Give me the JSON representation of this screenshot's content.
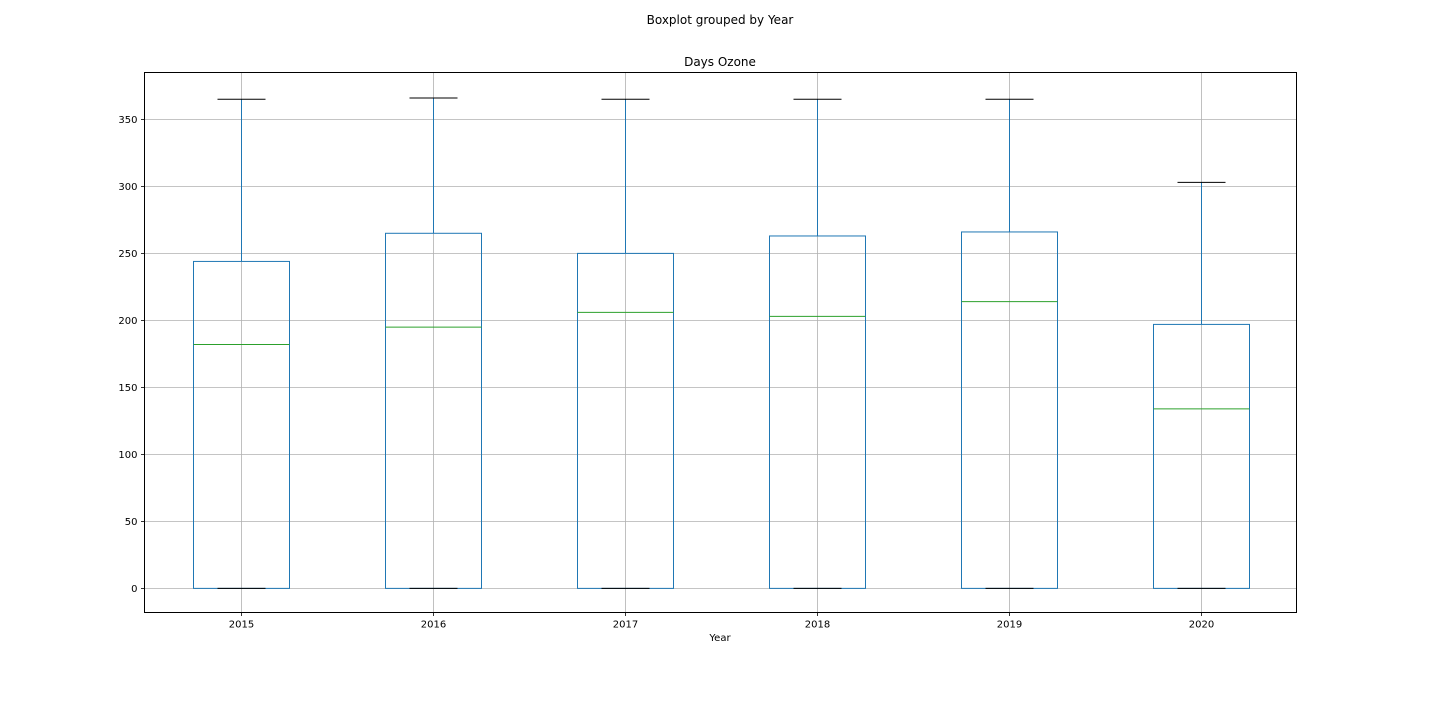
{
  "chart_data": {
    "type": "box",
    "suptitle": "Boxplot grouped by Year",
    "title": "Days Ozone",
    "xlabel": "Year",
    "ylabel": "",
    "ylim": [
      -18,
      385
    ],
    "yticks": [
      0,
      50,
      100,
      150,
      200,
      250,
      300,
      350
    ],
    "grid": true,
    "categories": [
      "2015",
      "2016",
      "2017",
      "2018",
      "2019",
      "2020"
    ],
    "boxes": [
      {
        "category": "2015",
        "min": 0,
        "q1": 0,
        "median": 182,
        "q3": 244,
        "max": 365
      },
      {
        "category": "2016",
        "min": 0,
        "q1": 0,
        "median": 195,
        "q3": 265,
        "max": 366
      },
      {
        "category": "2017",
        "min": 0,
        "q1": 0,
        "median": 206,
        "q3": 250,
        "max": 365
      },
      {
        "category": "2018",
        "min": 0,
        "q1": 0,
        "median": 203,
        "q3": 263,
        "max": 365
      },
      {
        "category": "2019",
        "min": 0,
        "q1": 0,
        "median": 214,
        "q3": 266,
        "max": 365
      },
      {
        "category": "2020",
        "min": 0,
        "q1": 0,
        "median": 134,
        "q3": 197,
        "max": 303
      }
    ],
    "colors": {
      "box": "#1f77b4",
      "median": "#2ca02c",
      "cap": "#000000",
      "grid": "#b0b0b0"
    }
  }
}
